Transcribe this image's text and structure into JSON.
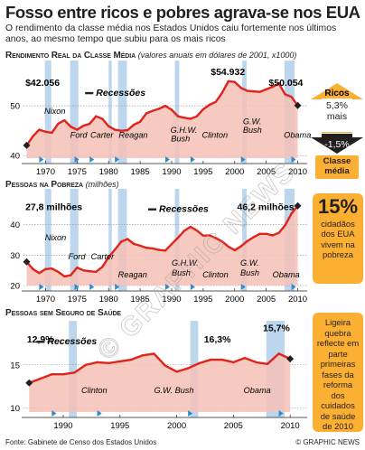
{
  "title": "Fosso entre ricos e pobres agrava-se nos EUA",
  "subtitle": "O rendimento da classe média nos Estados Unidos caiu fortemente nos últimos anos, ao mesmo tempo que subiu para os mais ricos",
  "recession_label": "Recessões",
  "source": "Fonte: Gabinete de Censo dos Estados Unidos",
  "credit": "© GRAPHIC NEWS",
  "watermark": "© GRAPHIC NEWS",
  "colors": {
    "line": "#e2231a",
    "fill": "#f6c1b6",
    "recession": "#bcd6ee",
    "panel": "#fbb034",
    "red_arrow": "#e2231a"
  },
  "chart_data": [
    {
      "type": "area",
      "title": "Rendimento Real da Classe Média",
      "note": "(valores anuais em dólares de 2001, x1000)",
      "x": [
        1967,
        1968,
        1969,
        1970,
        1971,
        1972,
        1973,
        1974,
        1975,
        1976,
        1977,
        1978,
        1979,
        1980,
        1981,
        1982,
        1983,
        1984,
        1985,
        1986,
        1987,
        1988,
        1989,
        1990,
        1991,
        1992,
        1993,
        1994,
        1995,
        1996,
        1997,
        1998,
        1999,
        2000,
        2001,
        2002,
        2003,
        2004,
        2005,
        2006,
        2007,
        2008,
        2009,
        2010
      ],
      "y": [
        42.056,
        43.9,
        45.2,
        44.8,
        44.6,
        46.4,
        47.1,
        45.8,
        45.2,
        46.0,
        46.4,
        47.9,
        47.4,
        45.9,
        45.2,
        45.0,
        45.1,
        46.2,
        46.8,
        48.5,
        49.0,
        49.4,
        50.0,
        49.2,
        47.9,
        47.6,
        47.4,
        47.9,
        49.3,
        50.2,
        50.8,
        52.6,
        54.932,
        54.8,
        53.6,
        53.0,
        52.9,
        52.8,
        53.3,
        53.8,
        54.5,
        52.3,
        51.8,
        50.054
      ],
      "xticks": [
        1970,
        1975,
        1980,
        1985,
        1990,
        1995,
        2000,
        2005,
        2010
      ],
      "yticks": [
        40,
        50
      ],
      "ylim": [
        39.5,
        58
      ],
      "xlim": [
        1966.5,
        2011.5
      ],
      "recessions": [
        [
          1969.9,
          1970.9
        ],
        [
          1973.9,
          1975.2
        ],
        [
          1980,
          1980.5
        ],
        [
          1981.5,
          1982.9
        ],
        [
          1990.5,
          1991.2
        ],
        [
          2001.2,
          2001.9
        ],
        [
          2007.9,
          2009.5
        ]
      ],
      "presidents": [
        {
          "name": "Nixon",
          "x": 1969.8,
          "y": 48.4
        },
        {
          "name": "Ford",
          "x": 1973.9,
          "y": 43.6
        },
        {
          "name": "Carter",
          "x": 1977.1,
          "y": 43.6
        },
        {
          "name": "Reagan",
          "x": 1981.6,
          "y": 43.6
        },
        {
          "name": "G.H.W.",
          "x": 1989.8,
          "y": 44.6
        },
        {
          "name": "Bush",
          "x": 1989.9,
          "y": 42.9
        },
        {
          "name": "Clinton",
          "x": 1994.8,
          "y": 43.6
        },
        {
          "name": "G.W.",
          "x": 2001.3,
          "y": 46.3
        },
        {
          "name": "Bush",
          "x": 2001.3,
          "y": 44.6
        },
        {
          "name": "Obama",
          "x": 2007.8,
          "y": 43.6
        }
      ],
      "data_labels": [
        {
          "text": "$42.056",
          "x": 1966.8,
          "y": 54.0
        },
        {
          "text": "$54.932",
          "x": 1996.2,
          "y": 56.2
        },
        {
          "text": "$50.054",
          "x": 2005.4,
          "y": 54.0
        }
      ],
      "inauguration_markers": [
        1969,
        1974.6,
        1977,
        1981,
        1989,
        1993,
        2001,
        2009
      ],
      "recession_label_pos": {
        "x": 1978.0,
        "y": 52.4
      }
    },
    {
      "type": "area",
      "title": "Pessoas na Pobreza",
      "note": "(milhões)",
      "x": [
        1967,
        1968,
        1969,
        1970,
        1971,
        1972,
        1973,
        1974,
        1975,
        1976,
        1977,
        1978,
        1979,
        1980,
        1981,
        1982,
        1983,
        1984,
        1985,
        1986,
        1987,
        1988,
        1989,
        1990,
        1991,
        1992,
        1993,
        1994,
        1995,
        1996,
        1997,
        1998,
        1999,
        2000,
        2001,
        2002,
        2003,
        2004,
        2005,
        2006,
        2007,
        2008,
        2009,
        2010
      ],
      "y": [
        27.8,
        25.4,
        24.1,
        25.4,
        25.6,
        24.5,
        23.0,
        23.4,
        25.9,
        25.0,
        24.7,
        24.5,
        26.1,
        29.3,
        31.8,
        34.4,
        35.3,
        33.7,
        33.1,
        32.4,
        32.2,
        31.7,
        31.5,
        33.6,
        35.7,
        38.0,
        39.3,
        38.1,
        36.4,
        36.5,
        35.6,
        34.5,
        32.8,
        31.6,
        32.9,
        34.6,
        35.9,
        37.0,
        37.0,
        36.5,
        37.3,
        39.8,
        43.6,
        46.2
      ],
      "xticks": [
        1970,
        1975,
        1980,
        1985,
        1990,
        1995,
        2000,
        2005,
        2010
      ],
      "yticks": [
        20,
        30,
        40
      ],
      "ylim": [
        20,
        50
      ],
      "xlim": [
        1966.5,
        2011.5
      ],
      "recessions": [
        [
          1969.9,
          1970.9
        ],
        [
          1973.9,
          1975.2
        ],
        [
          1980,
          1980.5
        ],
        [
          1981.5,
          1982.9
        ],
        [
          1990.5,
          1991.2
        ],
        [
          2001.2,
          2001.9
        ],
        [
          2007.9,
          2009.5
        ]
      ],
      "presidents": [
        {
          "name": "Nixon",
          "x": 1969.9,
          "y": 34.8
        },
        {
          "name": "Ford",
          "x": 1973.6,
          "y": 28.6
        },
        {
          "name": "Carter",
          "x": 1977.2,
          "y": 28.6
        },
        {
          "name": "Reagan",
          "x": 1981.5,
          "y": 22.6
        },
        {
          "name": "G.H.W.",
          "x": 1990.0,
          "y": 26.6
        },
        {
          "name": "Bush",
          "x": 1990.0,
          "y": 23.2
        },
        {
          "name": "Clinton",
          "x": 1994.9,
          "y": 22.6
        },
        {
          "name": "G.W.",
          "x": 2000.9,
          "y": 26.6
        },
        {
          "name": "Bush",
          "x": 2000.9,
          "y": 23.2
        },
        {
          "name": "Obama",
          "x": 2006.0,
          "y": 22.6
        }
      ],
      "data_labels": [
        {
          "text": "27,8 milhões",
          "x": 1966.8,
          "y": 44.8
        },
        {
          "text": "46,2 milhões",
          "x": 2000.4,
          "y": 44.8
        }
      ],
      "inauguration_markers": [
        1969,
        1974.6,
        1977,
        1981,
        1989,
        1993,
        2001,
        2009
      ],
      "recession_label_pos": {
        "x": 1988.0,
        "y": 44.8
      }
    },
    {
      "type": "area",
      "title": "Pessoas sem Seguro de Saúde",
      "note": "",
      "x": [
        1987,
        1988,
        1989,
        1990,
        1991,
        1992,
        1993,
        1994,
        1995,
        1996,
        1997,
        1998,
        1999,
        2000,
        2001,
        2002,
        2003,
        2004,
        2005,
        2006,
        2007,
        2008,
        2009,
        2010
      ],
      "y": [
        12.9,
        13.4,
        13.9,
        13.9,
        14.1,
        15.0,
        15.3,
        15.2,
        15.4,
        15.6,
        16.1,
        16.3,
        14.9,
        14.2,
        14.6,
        15.2,
        15.6,
        15.6,
        15.3,
        15.8,
        15.3,
        15.1,
        16.3,
        15.7
      ],
      "xticks": [
        1990,
        1995,
        2000,
        2005,
        2010
      ],
      "yticks": [
        10,
        15
      ],
      "ylim": [
        9.5,
        19.5
      ],
      "xlim": [
        1986.5,
        2011.5
      ],
      "recessions": [
        [
          1990.5,
          1991.2
        ],
        [
          2001.2,
          2001.9
        ],
        [
          2007.9,
          2009.5
        ]
      ],
      "presidents": [
        {
          "name": "Clinton",
          "x": 1991.6,
          "y": 11.7
        },
        {
          "name": "G.W. Bush",
          "x": 1998.0,
          "y": 11.7
        },
        {
          "name": "Obama",
          "x": 2005.9,
          "y": 11.7
        }
      ],
      "data_labels": [
        {
          "text": "12,9%",
          "x": 1986.8,
          "y": 17.6
        },
        {
          "text": "16,3%",
          "x": 2002.4,
          "y": 17.6
        },
        {
          "text": "15,7%",
          "x": 2007.6,
          "y": 18.9
        }
      ],
      "inauguration_markers": [
        1989,
        1993,
        2001,
        2009
      ],
      "recession_label_pos": {
        "x": 1988.6,
        "y": 17.6
      }
    }
  ],
  "panels": {
    "rich": {
      "label": "Ricos",
      "value": "5,3% mais"
    },
    "middle": {
      "value": "-1,5%",
      "label": "Classe média"
    },
    "poverty": {
      "big": "15%",
      "text": "cidadãos dos EUA vivem na pobreza"
    },
    "insurance": {
      "text": "Ligeira quebra reflecte em parte primeiras fases da reforma dos cuidados de saúde de 2010"
    }
  }
}
